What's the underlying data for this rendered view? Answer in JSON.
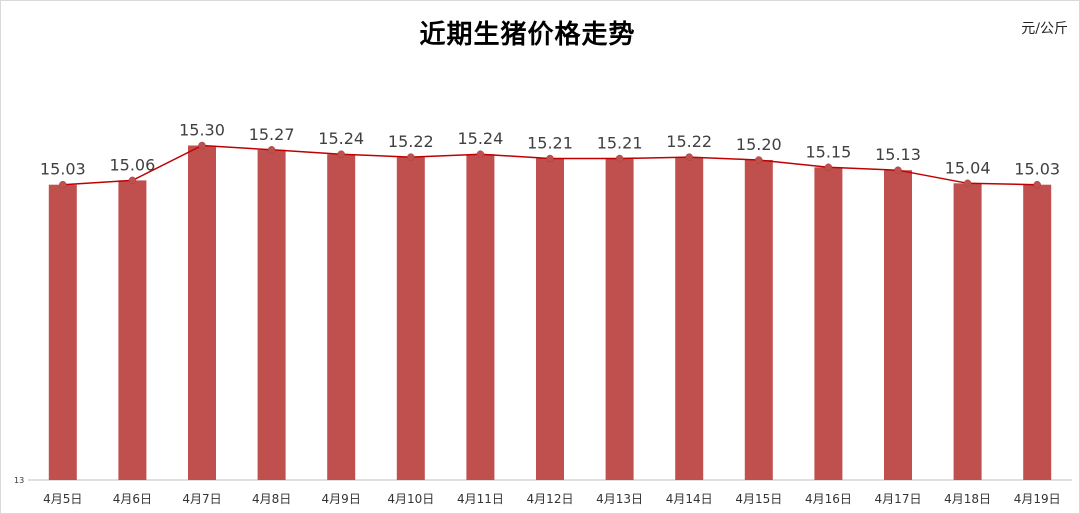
{
  "chart_data": {
    "type": "bar",
    "title": "近期生猪价格走势",
    "unit": "元/公斤",
    "categories": [
      "4月5日",
      "4月6日",
      "4月7日",
      "4月8日",
      "4月9日",
      "4月10日",
      "4月11日",
      "4月12日",
      "4月13日",
      "4月14日",
      "4月15日",
      "4月16日",
      "4月17日",
      "4月18日",
      "4月19日"
    ],
    "values": [
      15.03,
      15.06,
      15.3,
      15.27,
      15.24,
      15.22,
      15.24,
      15.21,
      15.21,
      15.22,
      15.2,
      15.15,
      15.13,
      15.04,
      15.03
    ],
    "value_labels": [
      "15.03",
      "15.06",
      "15.30",
      "15.27",
      "15.24",
      "15.22",
      "15.24",
      "15.21",
      "15.21",
      "15.22",
      "15.20",
      "15.15",
      "15.13",
      "15.04",
      "15.03"
    ],
    "ylim": [
      13,
      15.75
    ],
    "y_tick_labels": [
      "13"
    ],
    "xlabel": "",
    "ylabel": "",
    "grid": false,
    "legend": "none",
    "overlay_line": true,
    "colors": {
      "bar": "#c0504d",
      "line": "#c00000",
      "marker": "#c0504d"
    }
  }
}
